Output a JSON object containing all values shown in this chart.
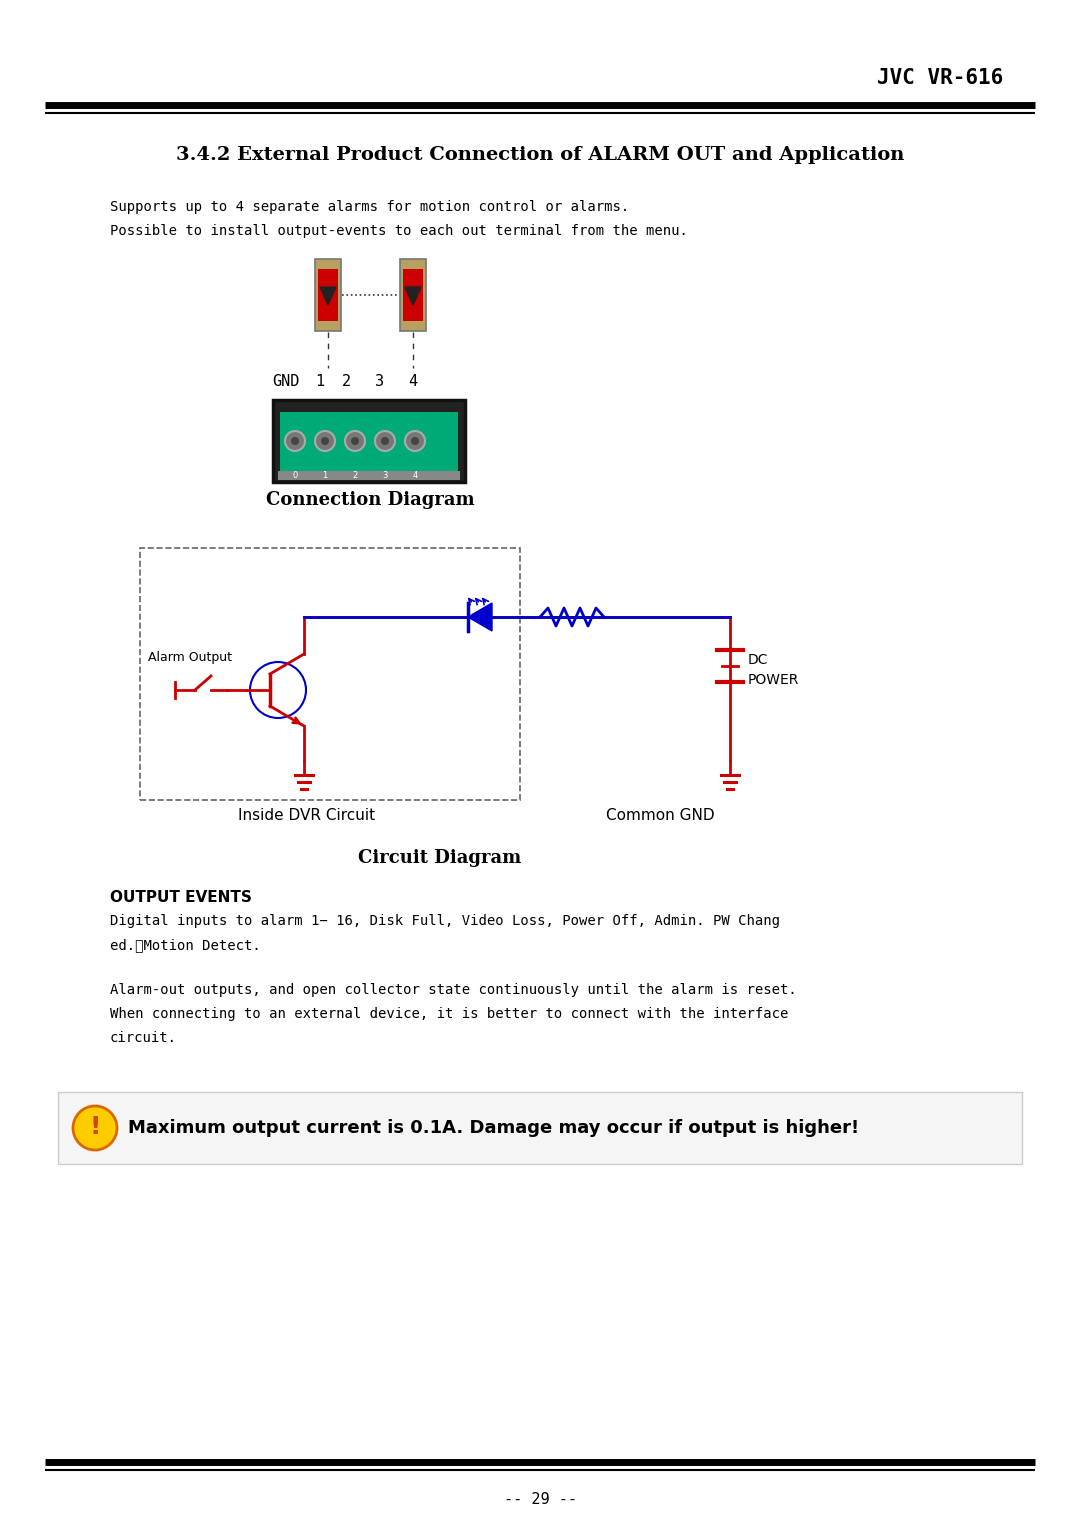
{
  "title": "JVC VR-616",
  "section_title": "3.4.2 External Product Connection of ALARM OUT and Application",
  "support_text1": "Supports up to 4 separate alarms for motion control or alarms.",
  "support_text2": "Possible to install output-events to each out terminal from the menu.",
  "conn_diagram_title": "Connection Diagram",
  "gnd_labels": [
    "GND",
    "1",
    "2",
    "3",
    "4"
  ],
  "circuit_diagram_title": "Circuit Diagram",
  "alarm_output_label": "Alarm Output",
  "inside_dvr_label": "Inside DVR Circuit",
  "common_gnd_label": "Common GND",
  "dc_power_label1": "DC",
  "dc_power_label2": "POWER",
  "output_events_title": "OUTPUT EVENTS",
  "output_events_text1": "Digital inputs to alarm 1− 16, Disk Full, Video Loss, Power Off, Admin. PW Chang",
  "output_events_text2": "ed.　Motion Detect.",
  "alarm_out_text1": "Alarm-out outputs, and open collector state continuously until the alarm is reset.",
  "alarm_out_text2": "When connecting to an external device, it is better to connect with the interface",
  "alarm_out_text3": "circuit.",
  "warning_text": "Maximum output current is 0.1A. Damage may occur if output is higher!",
  "page_number": "-- 29 --",
  "bg_color": "#ffffff",
  "text_color": "#000000",
  "red_color": "#cc0000",
  "blue_color": "#0000cc"
}
